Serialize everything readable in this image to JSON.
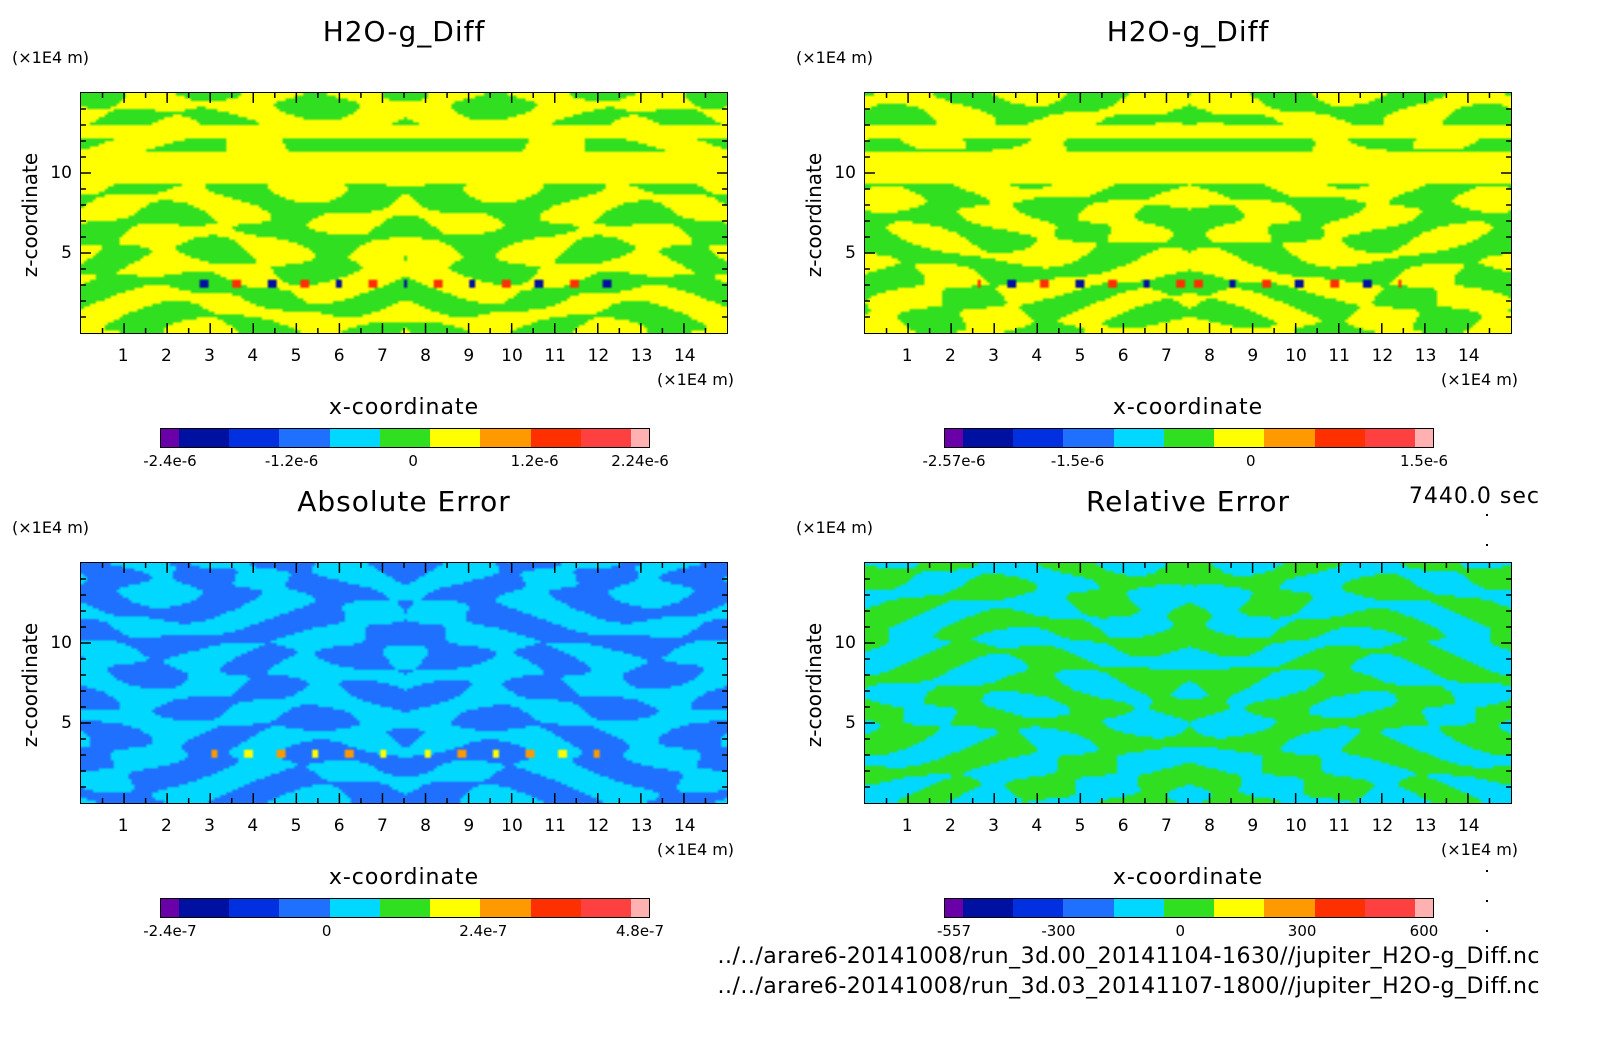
{
  "chart_data": [
    {
      "type": "heatmap",
      "title": "H2O-g_Diff",
      "xlabel": "x-coordinate",
      "ylabel": "z-coordinate",
      "x_unit": "(×1E4 m)",
      "y_unit": "(×1E4 m)",
      "xlim": [
        0,
        15
      ],
      "ylim": [
        0,
        15
      ],
      "x_ticks": [
        "1",
        "2",
        "3",
        "4",
        "5",
        "6",
        "7",
        "8",
        "9",
        "10",
        "11",
        "12",
        "13",
        "14"
      ],
      "y_ticks": [
        "5",
        "10"
      ],
      "colorbar_colors": [
        "#6a00a8",
        "#0010a0",
        "#0030e0",
        "#2070ff",
        "#00d8ff",
        "#30e020",
        "#ffff00",
        "#ff9900",
        "#ff3000",
        "#ff4040",
        "#ffb0b0"
      ],
      "colorbar_labels": [
        "-2.4e-6",
        "-1.2e-6",
        "0",
        "1.2e-6",
        "2.24e-6"
      ],
      "colorbar_range": [
        -2.4e-06,
        2.24e-06
      ],
      "dominant_colors": [
        "#30e020",
        "#ffff00"
      ]
    },
    {
      "type": "heatmap",
      "title": "H2O-g_Diff",
      "xlabel": "x-coordinate",
      "ylabel": "z-coordinate",
      "x_unit": "(×1E4 m)",
      "y_unit": "(×1E4 m)",
      "xlim": [
        0,
        15
      ],
      "ylim": [
        0,
        15
      ],
      "x_ticks": [
        "1",
        "2",
        "3",
        "4",
        "5",
        "6",
        "7",
        "8",
        "9",
        "10",
        "11",
        "12",
        "13",
        "14"
      ],
      "y_ticks": [
        "5",
        "10"
      ],
      "colorbar_colors": [
        "#6a00a8",
        "#0010a0",
        "#0030e0",
        "#2070ff",
        "#00d8ff",
        "#30e020",
        "#ffff00",
        "#ff9900",
        "#ff3000",
        "#ff4040",
        "#ffb0b0"
      ],
      "colorbar_labels": [
        "-2.57e-6",
        "-1.5e-6",
        "0",
        "1.5e-6"
      ],
      "colorbar_range": [
        -2.57e-06,
        1.5e-06
      ],
      "dominant_colors": [
        "#30e020",
        "#ffff00"
      ]
    },
    {
      "type": "heatmap",
      "title": "Absolute Error",
      "xlabel": "x-coordinate",
      "ylabel": "z-coordinate",
      "x_unit": "(×1E4 m)",
      "y_unit": "(×1E4 m)",
      "xlim": [
        0,
        15
      ],
      "ylim": [
        0,
        15
      ],
      "x_ticks": [
        "1",
        "2",
        "3",
        "4",
        "5",
        "6",
        "7",
        "8",
        "9",
        "10",
        "11",
        "12",
        "13",
        "14"
      ],
      "y_ticks": [
        "5",
        "10"
      ],
      "colorbar_colors": [
        "#6a00a8",
        "#0010a0",
        "#0030e0",
        "#2070ff",
        "#00d8ff",
        "#30e020",
        "#ffff00",
        "#ff9900",
        "#ff3000",
        "#ff4040",
        "#ffb0b0"
      ],
      "colorbar_labels": [
        "-2.4e-7",
        "0",
        "2.4e-7",
        "4.8e-7"
      ],
      "colorbar_range": [
        -2.4e-07,
        4.8e-07
      ],
      "dominant_colors": [
        "#2070ff",
        "#00d8ff"
      ]
    },
    {
      "type": "heatmap",
      "title": "Relative Error",
      "xlabel": "x-coordinate",
      "ylabel": "z-coordinate",
      "x_unit": "(×1E4 m)",
      "y_unit": "(×1E4 m)",
      "xlim": [
        0,
        15
      ],
      "ylim": [
        0,
        15
      ],
      "x_ticks": [
        "1",
        "2",
        "3",
        "4",
        "5",
        "6",
        "7",
        "8",
        "9",
        "10",
        "11",
        "12",
        "13",
        "14"
      ],
      "y_ticks": [
        "5",
        "10"
      ],
      "colorbar_colors": [
        "#6a00a8",
        "#0010a0",
        "#0030e0",
        "#2070ff",
        "#00d8ff",
        "#30e020",
        "#ffff00",
        "#ff9900",
        "#ff3000",
        "#ff4040",
        "#ffb0b0"
      ],
      "colorbar_labels": [
        "-557",
        "-300",
        "0",
        "300",
        "600"
      ],
      "colorbar_range": [
        -557,
        600
      ],
      "dominant_colors": [
        "#30e020",
        "#00d8ff"
      ]
    }
  ],
  "footer": {
    "time": "7440.0 sec",
    "path1": "../../arare6-20141008/run_3d.00_20141104-1630//jupiter_H2O-g_Diff.nc",
    "path2": "../../arare6-20141008/run_3d.03_20141107-1800//jupiter_H2O-g_Diff.nc"
  }
}
